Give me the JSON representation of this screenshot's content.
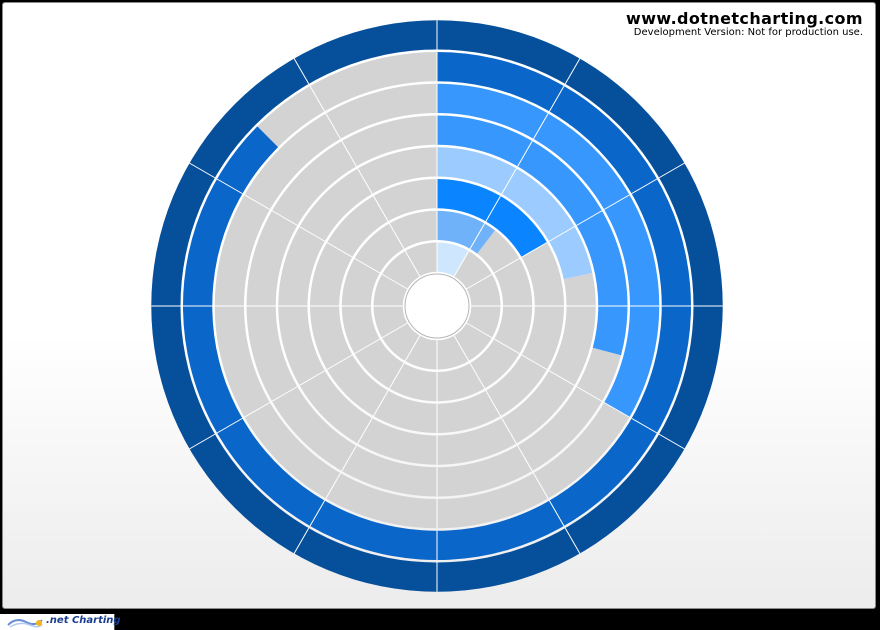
{
  "watermark": {
    "site": "www.dotnetcharting.com",
    "note": "Development Version: Not for production use."
  },
  "footer": {
    "logo_text": ".net Charting",
    "logo_icon": "dotnetcharting-logo-icon"
  },
  "chart_data": {
    "type": "radial-bar",
    "title": "",
    "sectors": 12,
    "rings": 8,
    "inner_radius_fraction": 0.12,
    "grid_color": "#d3d3d3",
    "separator_color": "#ffffff",
    "ring_colors": [
      "#cfe6ff",
      "#70b2fa",
      "#0a84ff",
      "#9ccbff",
      "#3897fc",
      "#3897fc",
      "#0a66c9",
      "#064f9b"
    ],
    "ring_extents_sectors": [
      1,
      1.25,
      2,
      2.6,
      3.5,
      4,
      10.5,
      12
    ]
  }
}
